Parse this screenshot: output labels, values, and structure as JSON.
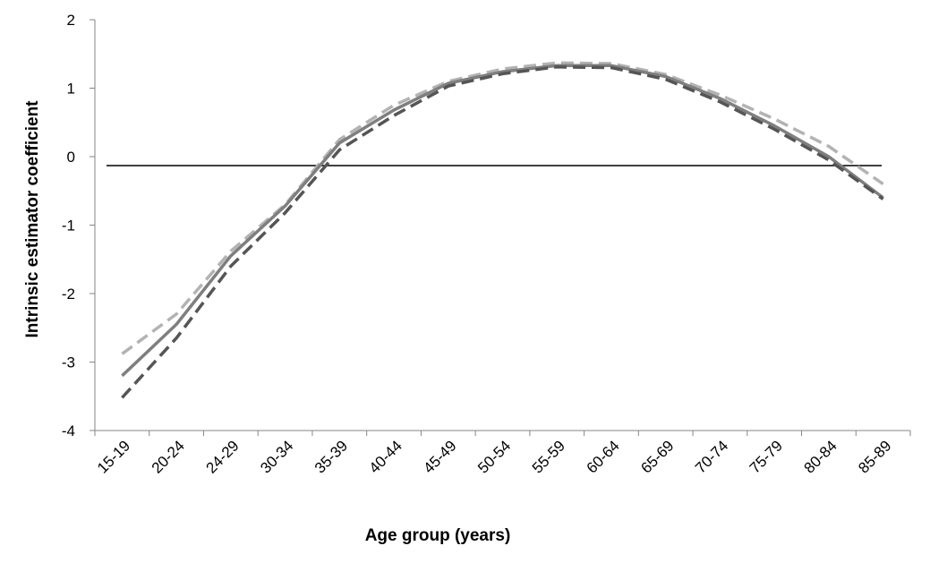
{
  "chart_data": {
    "type": "line",
    "title": "",
    "xlabel": "Age group (years)",
    "ylabel": "Intrinsic estimator coefficient",
    "categories": [
      "15-19",
      "20-24",
      "24-29",
      "30-34",
      "35-39",
      "40-44",
      "45-49",
      "50-54",
      "55-59",
      "60-64",
      "65-69",
      "70-74",
      "75-79",
      "80-84",
      "85-89"
    ],
    "ylim": [
      -4,
      2
    ],
    "yticks": [
      -4,
      -3,
      -2,
      -1,
      0,
      1,
      2
    ],
    "reference_line_y": -0.13,
    "grid": false,
    "legend": "none",
    "series": [
      {
        "style": "dashed",
        "color": "#b3b3b3",
        "values": [
          -2.88,
          -2.3,
          -1.38,
          -0.7,
          0.25,
          0.75,
          1.1,
          1.28,
          1.37,
          1.36,
          1.2,
          0.9,
          0.55,
          0.15,
          -0.4
        ]
      },
      {
        "style": "solid",
        "color": "#7f7f7f",
        "values": [
          -3.2,
          -2.45,
          -1.45,
          -0.72,
          0.2,
          0.68,
          1.07,
          1.24,
          1.33,
          1.33,
          1.17,
          0.85,
          0.45,
          0.0,
          -0.6
        ]
      },
      {
        "style": "dashed",
        "color": "#555555",
        "values": [
          -3.52,
          -2.65,
          -1.6,
          -0.82,
          0.1,
          0.6,
          1.03,
          1.21,
          1.31,
          1.3,
          1.13,
          0.8,
          0.4,
          -0.05,
          -0.62
        ]
      }
    ]
  }
}
